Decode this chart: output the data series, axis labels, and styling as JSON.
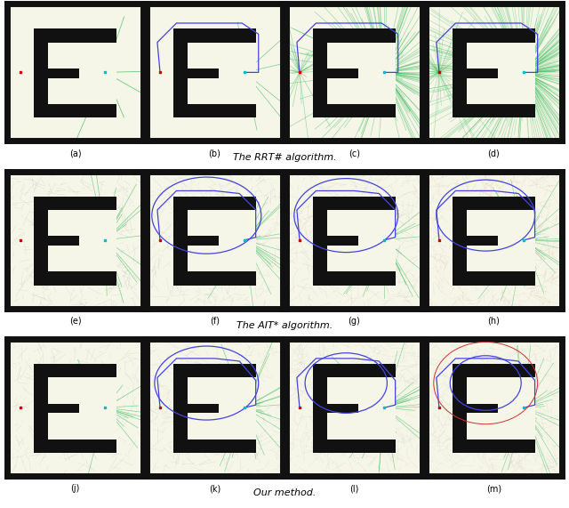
{
  "fig_width": 6.4,
  "fig_height": 5.71,
  "dpi": 100,
  "bg_color": "#f5f5e8",
  "frame_color": "#111111",
  "frame_lw": 5,
  "rows": 3,
  "cols": 4,
  "row_labels": [
    [
      "(a)",
      "(b)",
      "(c)",
      "(d)"
    ],
    [
      "(e)",
      "(f)",
      "(g)",
      "(h)"
    ],
    [
      "(j)",
      "(k)",
      "(l)",
      "(m)"
    ]
  ],
  "row_captions": [
    "The RRT# algorithm.",
    "The AIT* algorithm.",
    "Our method."
  ],
  "start_color": "#cc0000",
  "goal_color": "#00bbcc",
  "tree_green": "#33bb55",
  "tree_gray": "#aaaaaa",
  "tree_orange": "#cc7744",
  "path_color": "#4444dd",
  "ellipse_color": "#4444dd"
}
